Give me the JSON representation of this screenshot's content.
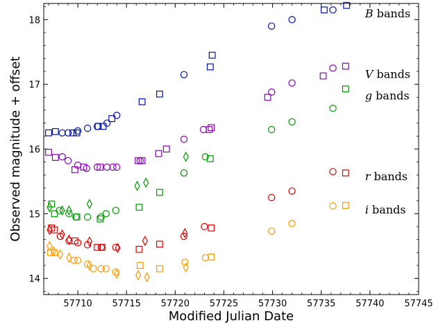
{
  "chart_data": {
    "type": "scatter",
    "xlabel": "Modified Julian Date",
    "ylabel": "Observed magnitude + offset",
    "xlim": [
      57706.5,
      57745
    ],
    "ylim": [
      18.25,
      13.75
    ],
    "y_inverted": true,
    "xticks": [
      57710,
      57715,
      57720,
      57725,
      57730,
      57735,
      57740,
      57745
    ],
    "yticks": [
      14,
      15,
      16,
      17,
      18
    ],
    "grid": false,
    "legend": [
      {
        "band": "i",
        "label": "i bands",
        "color": "#ff9900",
        "series": [
          "i-circle",
          "i-square"
        ]
      },
      {
        "band": "r",
        "label": "r bands",
        "color": "#dd0000",
        "series": [
          "r-circle",
          "r-square"
        ]
      },
      {
        "band": "g",
        "label": "g bands",
        "color": "#009900",
        "series": [
          "g-square"
        ]
      },
      {
        "band": "V",
        "label": "V bands",
        "color": "#8800bb",
        "series": [
          "V-circle",
          "V-square"
        ]
      },
      {
        "band": "B",
        "label": "B bands",
        "color": "#0011aa",
        "series": [
          "B-circle",
          "B-square"
        ]
      }
    ],
    "series": [
      {
        "id": "i-circle",
        "band": "i",
        "marker": "circle",
        "color": "#ff9900",
        "x": [
          57709.6,
          57710.0,
          57711.0,
          57711.6,
          57712.4,
          57712.9,
          57713.9,
          57721.0,
          57723.1,
          57729.9,
          57732.0,
          57736.2
        ],
        "y": [
          14.28,
          14.28,
          14.22,
          14.15,
          14.15,
          14.15,
          14.1,
          14.25,
          14.32,
          14.73,
          14.85,
          15.12
        ]
      },
      {
        "id": "i-square",
        "band": "i",
        "marker": "square",
        "color": "#ff9900",
        "x": [
          57707.2,
          57707.6,
          57716.4,
          57718.4,
          57723.7,
          57737.5
        ],
        "y": [
          14.4,
          14.4,
          14.2,
          14.15,
          14.33,
          15.13
        ]
      },
      {
        "id": "i-diamond",
        "band": "i",
        "marker": "diamond",
        "color": "#ff9900",
        "x": [
          57707.1,
          57707.5,
          57708.2,
          57709.1,
          57711.2,
          57714.0,
          57716.2,
          57717.1,
          57721.1
        ],
        "y": [
          14.5,
          14.42,
          14.37,
          14.32,
          14.2,
          14.07,
          14.05,
          14.02,
          14.17
        ]
      },
      {
        "id": "r-circle",
        "band": "r",
        "marker": "circle",
        "color": "#dd0000",
        "x": [
          57708.2,
          57709.1,
          57710.0,
          57711.0,
          57712.4,
          57713.9,
          57720.9,
          57723.0,
          57729.9,
          57732.0,
          57736.2
        ],
        "y": [
          14.65,
          14.58,
          14.55,
          14.52,
          14.48,
          14.48,
          14.65,
          14.8,
          15.25,
          15.35,
          15.65
        ]
      },
      {
        "id": "r-square",
        "band": "r",
        "marker": "square",
        "color": "#dd0000",
        "x": [
          57707.3,
          57707.6,
          57709.7,
          57712.0,
          57712.5,
          57716.3,
          57718.4,
          57723.7,
          57737.5
        ],
        "y": [
          14.78,
          14.75,
          14.58,
          14.48,
          14.48,
          14.45,
          14.53,
          14.78,
          15.63
        ]
      },
      {
        "id": "r-diamond",
        "band": "r",
        "marker": "diamond",
        "color": "#dd0000",
        "x": [
          57707.1,
          57708.4,
          57709.1,
          57711.2,
          57714.1,
          57716.9,
          57721.0
        ],
        "y": [
          14.75,
          14.68,
          14.6,
          14.57,
          14.47,
          14.58,
          14.7
        ]
      },
      {
        "id": "g-circle",
        "band": "g",
        "marker": "circle",
        "color": "#009900",
        "x": [
          57708.1,
          57709.1,
          57709.8,
          57711.0,
          57712.4,
          57712.9,
          57713.9,
          57720.9,
          57723.1,
          57729.9,
          57732.0,
          57736.2
        ],
        "y": [
          15.05,
          15.0,
          14.95,
          14.95,
          14.95,
          15.0,
          15.05,
          15.63,
          15.88,
          16.3,
          16.42,
          16.63
        ]
      },
      {
        "id": "g-square",
        "band": "g",
        "marker": "square",
        "color": "#009900",
        "x": [
          57707.3,
          57707.6,
          57709.9,
          57712.3,
          57716.3,
          57718.4,
          57723.6,
          57737.5
        ],
        "y": [
          15.15,
          15.0,
          14.95,
          14.92,
          15.1,
          15.33,
          15.85,
          16.93
        ]
      },
      {
        "id": "g-diamond",
        "band": "g",
        "marker": "diamond",
        "color": "#009900",
        "x": [
          57707.1,
          57708.4,
          57709.1,
          57711.2,
          57716.1,
          57717.0,
          57721.1
        ],
        "y": [
          15.1,
          15.05,
          15.05,
          15.15,
          15.43,
          15.48,
          15.88
        ]
      },
      {
        "id": "V-circle",
        "band": "V",
        "marker": "circle",
        "color": "#8800bb",
        "x": [
          57708.4,
          57709.0,
          57710.0,
          57710.9,
          57712.0,
          57713.0,
          57713.6,
          57714.0,
          57716.4,
          57720.9,
          57722.9,
          57729.9,
          57732.0,
          57736.2
        ],
        "y": [
          15.88,
          15.82,
          15.75,
          15.7,
          15.72,
          15.72,
          15.72,
          15.72,
          15.82,
          16.15,
          16.3,
          16.88,
          17.02,
          17.25
        ]
      },
      {
        "id": "V-square",
        "band": "V",
        "marker": "square",
        "color": "#8800bb",
        "x": [
          57707.0,
          57707.7,
          57709.7,
          57710.6,
          57712.3,
          57716.2,
          57716.6,
          57718.3,
          57719.1,
          57723.5,
          57723.7,
          57729.5,
          57735.2,
          57737.5
        ],
        "y": [
          15.95,
          15.87,
          15.68,
          15.72,
          15.72,
          15.82,
          15.82,
          15.93,
          16.0,
          16.3,
          16.33,
          16.8,
          17.13,
          17.28
        ]
      },
      {
        "id": "B-circle",
        "band": "B",
        "marker": "circle",
        "color": "#0011aa",
        "x": [
          57708.4,
          57709.0,
          57710.0,
          57711.0,
          57712.0,
          57713.0,
          57714.0,
          57720.9,
          57729.9,
          57732.0,
          57736.2
        ],
        "y": [
          16.25,
          16.25,
          16.28,
          16.32,
          16.35,
          16.4,
          16.52,
          17.15,
          17.9,
          18.0,
          18.15
        ]
      },
      {
        "id": "B-square",
        "band": "B",
        "marker": "square",
        "color": "#0011aa",
        "x": [
          57707.0,
          57707.7,
          57709.5,
          57709.9,
          57712.1,
          57712.6,
          57713.5,
          57716.6,
          57718.4,
          57723.6,
          57723.8,
          57735.3,
          57737.6
        ],
        "y": [
          16.25,
          16.27,
          16.25,
          16.25,
          16.35,
          16.35,
          16.47,
          16.73,
          16.85,
          17.27,
          17.45,
          18.15,
          18.22
        ]
      }
    ]
  }
}
